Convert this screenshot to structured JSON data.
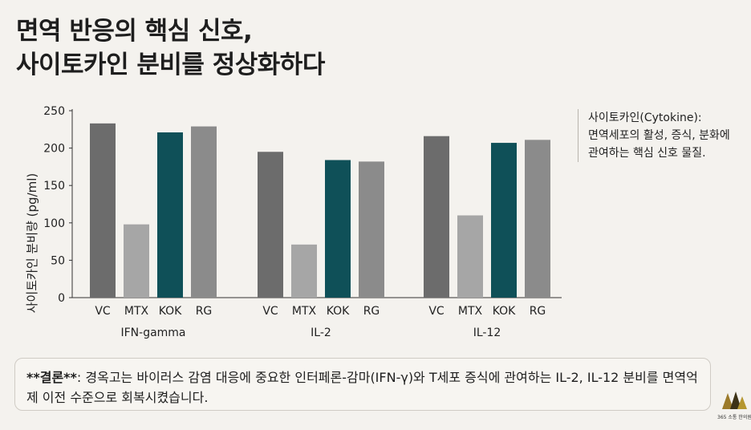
{
  "title": {
    "line1": "면역 반응의 핵심 신호,",
    "line2": "사이토카인 분비를 정상화하다"
  },
  "chart_data": {
    "type": "bar",
    "ylabel": "사이토카인 분비량 (pg/ml)",
    "ylim": [
      0,
      250
    ],
    "yticks": [
      0,
      50,
      100,
      150,
      200,
      250
    ],
    "grid": false,
    "groups": [
      {
        "name": "IFN-gamma",
        "categories": [
          "VC",
          "MTX",
          "KOK",
          "RG"
        ],
        "values": [
          233,
          98,
          221,
          229
        ]
      },
      {
        "name": "IL-2",
        "categories": [
          "VC",
          "MTX",
          "KOK",
          "RG"
        ],
        "values": [
          195,
          71,
          184,
          182
        ]
      },
      {
        "name": "IL-12",
        "categories": [
          "VC",
          "MTX",
          "KOK",
          "RG"
        ],
        "values": [
          216,
          110,
          207,
          211
        ]
      }
    ],
    "colors": {
      "VC": "#6c6c6c",
      "MTX": "#a6a6a6",
      "KOK": "#0f5058",
      "RG": "#8b8b8b"
    }
  },
  "note": {
    "line1": "사이토카인(Cytokine):",
    "line2": "면역세포의 활성, 증식, 분화에",
    "line3": "관여하는 핵심 신호 물질."
  },
  "conclusion": {
    "label": "**결론**",
    "text": ": 경옥고는 바이러스 감염 대응에 중요한 인터페론-감마(IFN-γ)와 T세포 증식에 관여하는 IL-2, IL-12 분비를 면역억제 이전 수준으로 회복시켰습니다."
  },
  "logo": {
    "label": "365 소통 한의원"
  }
}
